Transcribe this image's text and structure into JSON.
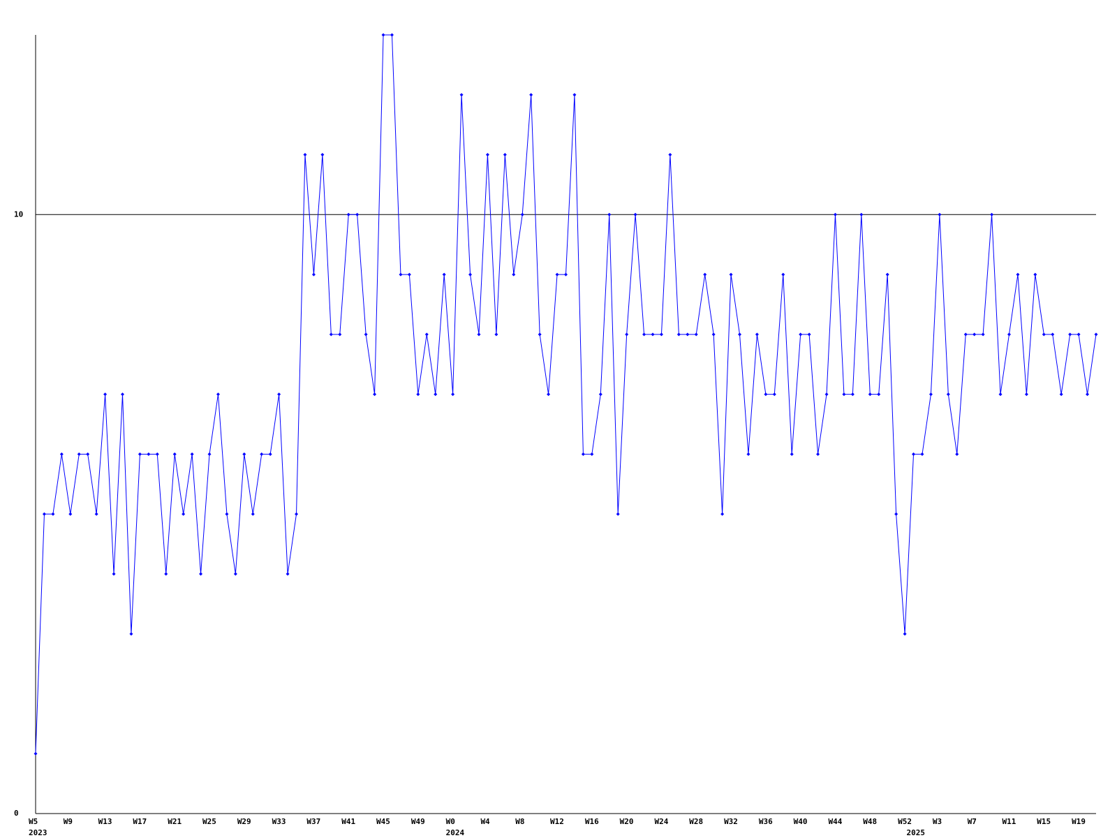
{
  "chart_data": {
    "type": "line",
    "categories": [
      "W5",
      null,
      null,
      null,
      "W9",
      null,
      null,
      null,
      "W13",
      null,
      null,
      null,
      "W17",
      null,
      null,
      null,
      "W21",
      null,
      null,
      null,
      "W25",
      null,
      null,
      null,
      "W29",
      null,
      null,
      null,
      "W33",
      null,
      null,
      null,
      "W37",
      null,
      null,
      null,
      "W41",
      null,
      null,
      null,
      "W45",
      null,
      null,
      null,
      "W49",
      null,
      null,
      null,
      "W0",
      null,
      null,
      null,
      "W4",
      null,
      null,
      null,
      "W8",
      null,
      null,
      null,
      "W12",
      null,
      null,
      null,
      "W16",
      null,
      null,
      null,
      "W20",
      null,
      null,
      null,
      "W24",
      null,
      null,
      null,
      "W28",
      null,
      null,
      null,
      "W32",
      null,
      null,
      null,
      "W36",
      null,
      null,
      null,
      "W40",
      null,
      null,
      null,
      "W44",
      null,
      null,
      null,
      "W48",
      null,
      null,
      null,
      "W52",
      null,
      null,
      null,
      "W3",
      null,
      null,
      null,
      "W7",
      null,
      null,
      null,
      "W11",
      null,
      null,
      null,
      "W15",
      null,
      null,
      null,
      "W19",
      null,
      null
    ],
    "year_labels": [
      "2023",
      null,
      null,
      null,
      null,
      null,
      null,
      null,
      null,
      null,
      null,
      null,
      null,
      null,
      null,
      null,
      null,
      null,
      null,
      null,
      null,
      null,
      null,
      null,
      null,
      null,
      null,
      null,
      null,
      null,
      null,
      null,
      null,
      null,
      null,
      null,
      null,
      null,
      null,
      null,
      null,
      null,
      null,
      null,
      null,
      null,
      null,
      null,
      "2024",
      null,
      null,
      null,
      null,
      null,
      null,
      null,
      null,
      null,
      null,
      null,
      null,
      null,
      null,
      null,
      null,
      null,
      null,
      null,
      null,
      null,
      null,
      null,
      null,
      null,
      null,
      null,
      null,
      null,
      null,
      null,
      null,
      null,
      null,
      null,
      null,
      null,
      null,
      null,
      null,
      null,
      null,
      null,
      null,
      null,
      null,
      null,
      null,
      null,
      null,
      null,
      null,
      "2025",
      null,
      null,
      null,
      null,
      null,
      null,
      null,
      null,
      null,
      null,
      null,
      null,
      null,
      null,
      null,
      null,
      null,
      null,
      null,
      null,
      null
    ],
    "series": [
      {
        "color": "#0000ff",
        "values": [
          1,
          5,
          5,
          6,
          5,
          6,
          6,
          5,
          7,
          4,
          7,
          3,
          6,
          6,
          6,
          4,
          6,
          5,
          6,
          4,
          6,
          7,
          5,
          4,
          6,
          5,
          6,
          6,
          7,
          4,
          5,
          11,
          9,
          11,
          8,
          8,
          10,
          10,
          8,
          7,
          13,
          13,
          9,
          9,
          7,
          8,
          7,
          9,
          7,
          12,
          9,
          8,
          11,
          8,
          11,
          9,
          10,
          12,
          8,
          7,
          9,
          9,
          12,
          6,
          6,
          7,
          10,
          5,
          8,
          10,
          8,
          8,
          8,
          11,
          8,
          8,
          8,
          9,
          8,
          5,
          9,
          8,
          6,
          8,
          7,
          7,
          9,
          6,
          8,
          8,
          6,
          7,
          10,
          7,
          7,
          10,
          7,
          7,
          9,
          5,
          3,
          6,
          6,
          7,
          10,
          7,
          6,
          8,
          8,
          8,
          10,
          7,
          8,
          9,
          7,
          9,
          8,
          8,
          7,
          8,
          8,
          7,
          8
        ]
      }
    ],
    "ylim": [
      0,
      13
    ],
    "yticks": [
      0,
      10
    ],
    "grid": true
  }
}
